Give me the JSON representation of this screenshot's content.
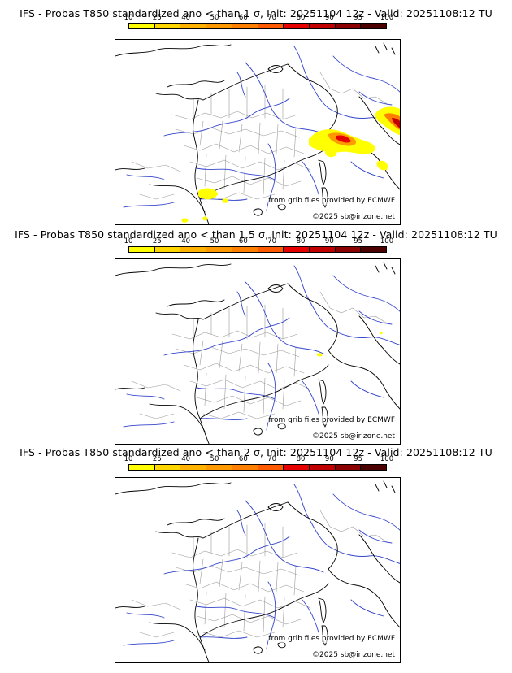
{
  "legend": {
    "ticks": [
      "10",
      "25",
      "40",
      "50",
      "60",
      "70",
      "80",
      "90",
      "95",
      "100"
    ],
    "colors": [
      "#ffff00",
      "#ffd700",
      "#ffb300",
      "#ff9900",
      "#ff7f00",
      "#ff5a00",
      "#e60000",
      "#c00000",
      "#8b0000",
      "#4d0000"
    ]
  },
  "credit_source": "from grib files provided by ECMWF",
  "credit_copyright": "©2025 sb@irizone.net",
  "panels": [
    {
      "title": "IFS - Probas T850  standardized ano < than 1 σ, Init: 20251104 12z - Valid: 20251108:12 TU"
    },
    {
      "title": "IFS - Probas T850  standardized ano < than 1.5 σ, Init: 20251104 12z - Valid: 20251108:12 TU"
    },
    {
      "title": "IFS - Probas T850  standardized ano < than 2 σ, Init: 20251104 12z - Valid: 20251108:12 TU"
    }
  ]
}
